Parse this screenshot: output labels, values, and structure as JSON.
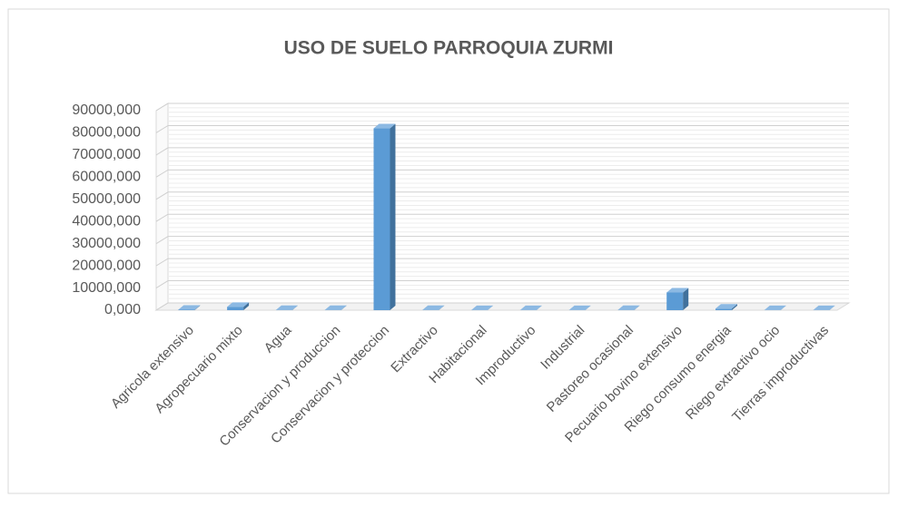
{
  "chart_data": {
    "type": "bar3d",
    "title": "USO DE SUELO PARROQUIA ZURMI",
    "categories": [
      "Agricola extensivo",
      "Agropecuario mixto",
      "Agua",
      "Conservacion y produccion",
      "Conservacion y proteccion",
      "Extractivo",
      "Habitacional",
      "Improductivo",
      "Industrial",
      "Pastoreo ocasional",
      "Pecuario bovino extensivo",
      "Riego consumo energia",
      "Riego extractivo ocio",
      "Tierras improductivas"
    ],
    "values": [
      200,
      1500,
      100,
      100,
      82000,
      100,
      50,
      50,
      30,
      100,
      8000,
      700,
      50,
      50
    ],
    "color": "#5b9bd5",
    "ylim": [
      0,
      90000
    ],
    "yticks": [
      {
        "value": 0,
        "label": "0,000"
      },
      {
        "value": 10000,
        "label": "10000,000"
      },
      {
        "value": 20000,
        "label": "20000,000"
      },
      {
        "value": 30000,
        "label": "30000,000"
      },
      {
        "value": 40000,
        "label": "40000,000"
      },
      {
        "value": 50000,
        "label": "50000,000"
      },
      {
        "value": 60000,
        "label": "60000,000"
      },
      {
        "value": 70000,
        "label": "70000,000"
      },
      {
        "value": 80000,
        "label": "80000,000"
      },
      {
        "value": 90000,
        "label": "90000,000"
      }
    ],
    "grid": true
  }
}
